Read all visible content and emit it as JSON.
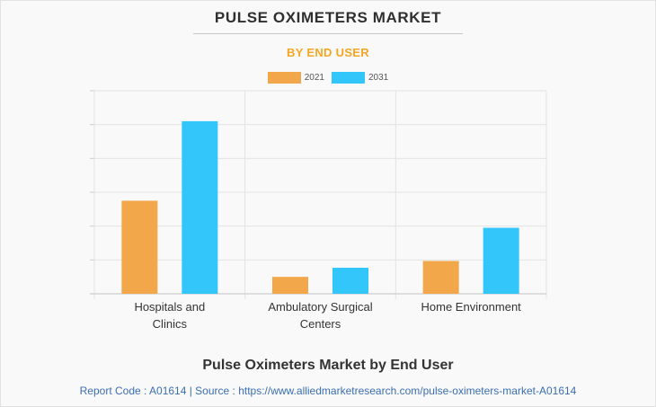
{
  "title": "PULSE OXIMETERS MARKET",
  "subtitle": "BY END USER",
  "colors": {
    "series_2021": "#f2a74a",
    "series_2031": "#33c6fb",
    "subtitle": "#f5a623",
    "source_link": "#3a6fb0"
  },
  "chart_data": {
    "type": "bar",
    "categories": [
      [
        "Hospitals and",
        "Clinics"
      ],
      [
        "Ambulatory Surgical",
        "Centers"
      ],
      [
        "Home Environment"
      ]
    ],
    "series": [
      {
        "name": "2021",
        "values": [
          2.75,
          0.5,
          0.97
        ]
      },
      {
        "name": "2031",
        "values": [
          5.1,
          0.77,
          1.95
        ]
      }
    ],
    "ylim": [
      0,
      6
    ],
    "y_tick_labels_shown": false,
    "grid": true,
    "legend_position": "top-center"
  },
  "footer": {
    "title": "Pulse Oximeters Market by End User",
    "source": "Report Code : A01614  |  Source : https://www.alliedmarketresearch.com/pulse-oximeters-market-A01614"
  }
}
